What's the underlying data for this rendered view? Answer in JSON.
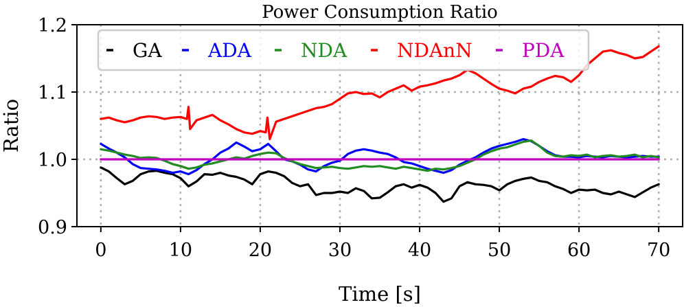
{
  "chart_data": {
    "type": "line",
    "title": "Power Consumption Ratio",
    "xlabel": "Time [s]",
    "ylabel": "Ratio",
    "xlim": [
      -3,
      73
    ],
    "ylim": [
      0.9,
      1.2
    ],
    "xticks": [
      0,
      10,
      20,
      30,
      40,
      50,
      60,
      70
    ],
    "yticks": [
      0.9,
      1.0,
      1.1,
      1.2
    ],
    "xtick_labels": [
      "0",
      "10",
      "20",
      "30",
      "40",
      "50",
      "60",
      "70"
    ],
    "ytick_labels": [
      "0.9",
      "1.0",
      "1.1",
      "1.2"
    ],
    "grid": true,
    "legend_position": "top-left",
    "series": [
      {
        "name": "GA",
        "color": "#000000",
        "x": [
          0,
          1,
          2,
          3,
          4,
          5,
          6,
          7,
          8,
          9,
          10,
          11,
          12,
          13,
          14,
          15,
          16,
          17,
          18,
          19,
          20,
          21,
          22,
          23,
          24,
          25,
          26,
          27,
          28,
          29,
          30,
          31,
          32,
          33,
          34,
          35,
          36,
          37,
          38,
          39,
          40,
          41,
          42,
          43,
          44,
          45,
          46,
          47,
          48,
          49,
          50,
          51,
          52,
          53,
          54,
          55,
          56,
          57,
          58,
          59,
          60,
          61,
          62,
          63,
          64,
          65,
          66,
          67,
          68,
          69,
          70
        ],
        "values": [
          0.988,
          0.982,
          0.972,
          0.963,
          0.968,
          0.978,
          0.982,
          0.983,
          0.98,
          0.978,
          0.972,
          0.96,
          0.967,
          0.978,
          0.977,
          0.98,
          0.976,
          0.974,
          0.97,
          0.963,
          0.978,
          0.982,
          0.98,
          0.975,
          0.965,
          0.96,
          0.963,
          0.947,
          0.95,
          0.95,
          0.952,
          0.95,
          0.957,
          0.953,
          0.942,
          0.943,
          0.951,
          0.96,
          0.963,
          0.958,
          0.962,
          0.958,
          0.95,
          0.937,
          0.942,
          0.96,
          0.966,
          0.963,
          0.962,
          0.96,
          0.954,
          0.963,
          0.968,
          0.971,
          0.973,
          0.968,
          0.966,
          0.96,
          0.956,
          0.95,
          0.955,
          0.954,
          0.955,
          0.95,
          0.948,
          0.952,
          0.948,
          0.944,
          0.951,
          0.958,
          0.963
        ]
      },
      {
        "name": "ADA",
        "color": "#0000ff",
        "x": [
          0,
          1,
          2,
          3,
          4,
          5,
          6,
          7,
          8,
          9,
          10,
          11,
          12,
          13,
          14,
          15,
          16,
          17,
          18,
          19,
          20,
          21,
          22,
          23,
          24,
          25,
          26,
          27,
          28,
          29,
          30,
          31,
          32,
          33,
          34,
          35,
          36,
          37,
          38,
          39,
          40,
          41,
          42,
          43,
          44,
          45,
          46,
          47,
          48,
          49,
          50,
          51,
          52,
          53,
          54,
          55,
          56,
          57,
          58,
          59,
          60,
          61,
          62,
          63,
          64,
          65,
          66,
          67,
          68,
          69,
          70
        ],
        "values": [
          1.023,
          1.016,
          1.01,
          1.003,
          0.993,
          0.987,
          0.986,
          0.985,
          0.983,
          0.98,
          0.982,
          0.978,
          0.984,
          0.993,
          1.0,
          1.01,
          1.016,
          1.025,
          1.019,
          1.012,
          1.015,
          1.023,
          1.012,
          1.0,
          0.997,
          0.992,
          0.985,
          0.982,
          0.99,
          0.995,
          0.998,
          1.008,
          1.013,
          1.015,
          1.013,
          1.01,
          1.008,
          1.003,
          0.996,
          0.994,
          0.99,
          0.986,
          0.983,
          0.98,
          0.984,
          0.992,
          0.998,
          1.003,
          1.01,
          1.016,
          1.02,
          1.023,
          1.026,
          1.03,
          1.027,
          1.02,
          1.012,
          1.006,
          1.004,
          1.004,
          1.003,
          1.005,
          1.004,
          1.003,
          1.005,
          1.004,
          1.003,
          1.004,
          1.005,
          1.004,
          1.004
        ]
      },
      {
        "name": "NDA",
        "color": "#228b22",
        "x": [
          0,
          1,
          2,
          3,
          4,
          5,
          6,
          7,
          8,
          9,
          10,
          11,
          12,
          13,
          14,
          15,
          16,
          17,
          18,
          19,
          20,
          21,
          22,
          23,
          24,
          25,
          26,
          27,
          28,
          29,
          30,
          31,
          32,
          33,
          34,
          35,
          36,
          37,
          38,
          39,
          40,
          41,
          42,
          43,
          44,
          45,
          46,
          47,
          48,
          49,
          50,
          51,
          52,
          53,
          54,
          55,
          56,
          57,
          58,
          59,
          60,
          61,
          62,
          63,
          64,
          65,
          66,
          67,
          68,
          69,
          70
        ],
        "values": [
          1.015,
          1.013,
          1.01,
          1.007,
          1.005,
          1.002,
          1.003,
          1.002,
          0.998,
          0.993,
          0.99,
          0.986,
          0.988,
          0.992,
          0.994,
          0.997,
          1.0,
          1.003,
          1.001,
          1.005,
          1.008,
          1.01,
          1.009,
          1.002,
          0.997,
          0.993,
          0.99,
          0.987,
          0.988,
          0.989,
          0.987,
          0.986,
          0.988,
          0.99,
          0.989,
          0.99,
          0.988,
          0.986,
          0.989,
          0.987,
          0.985,
          0.983,
          0.986,
          0.985,
          0.987,
          0.99,
          0.995,
          1.0,
          1.007,
          1.012,
          1.016,
          1.018,
          1.022,
          1.026,
          1.028,
          1.02,
          1.01,
          1.005,
          1.004,
          1.006,
          1.005,
          1.007,
          1.003,
          1.005,
          1.006,
          1.004,
          1.005,
          1.007,
          1.003,
          1.005,
          1.003
        ]
      },
      {
        "name": "NDAnN",
        "color": "#ff0000",
        "x": [
          0,
          1,
          2,
          3,
          4,
          5,
          6,
          7,
          8,
          9,
          10,
          10.8,
          11,
          11.2,
          12,
          13,
          14,
          15,
          16,
          17,
          18,
          19,
          20,
          20.7,
          20.9,
          21.2,
          22,
          23,
          24,
          25,
          26,
          27,
          28,
          29,
          30,
          31,
          32,
          33,
          34,
          35,
          36,
          37,
          38,
          39,
          40,
          41,
          42,
          43,
          44,
          45,
          46,
          47,
          48,
          49,
          50,
          51,
          52,
          53,
          54,
          55,
          56,
          57,
          58,
          59,
          60,
          61,
          62,
          63,
          64,
          65,
          66,
          67,
          68,
          69,
          70
        ],
        "values": [
          1.06,
          1.062,
          1.058,
          1.055,
          1.058,
          1.062,
          1.064,
          1.063,
          1.06,
          1.062,
          1.063,
          1.06,
          1.078,
          1.045,
          1.058,
          1.062,
          1.066,
          1.058,
          1.052,
          1.045,
          1.04,
          1.038,
          1.042,
          1.04,
          1.062,
          1.03,
          1.056,
          1.06,
          1.064,
          1.068,
          1.072,
          1.076,
          1.078,
          1.082,
          1.09,
          1.098,
          1.1,
          1.097,
          1.098,
          1.092,
          1.1,
          1.105,
          1.11,
          1.102,
          1.108,
          1.11,
          1.113,
          1.117,
          1.12,
          1.125,
          1.133,
          1.128,
          1.12,
          1.112,
          1.105,
          1.102,
          1.098,
          1.105,
          1.108,
          1.115,
          1.12,
          1.124,
          1.122,
          1.115,
          1.125,
          1.14,
          1.15,
          1.16,
          1.162,
          1.158,
          1.155,
          1.15,
          1.152,
          1.16,
          1.168
        ]
      },
      {
        "name": "PDA",
        "color": "#bf00bf",
        "x": [
          0,
          70
        ],
        "values": [
          1.0,
          1.0
        ]
      }
    ]
  }
}
